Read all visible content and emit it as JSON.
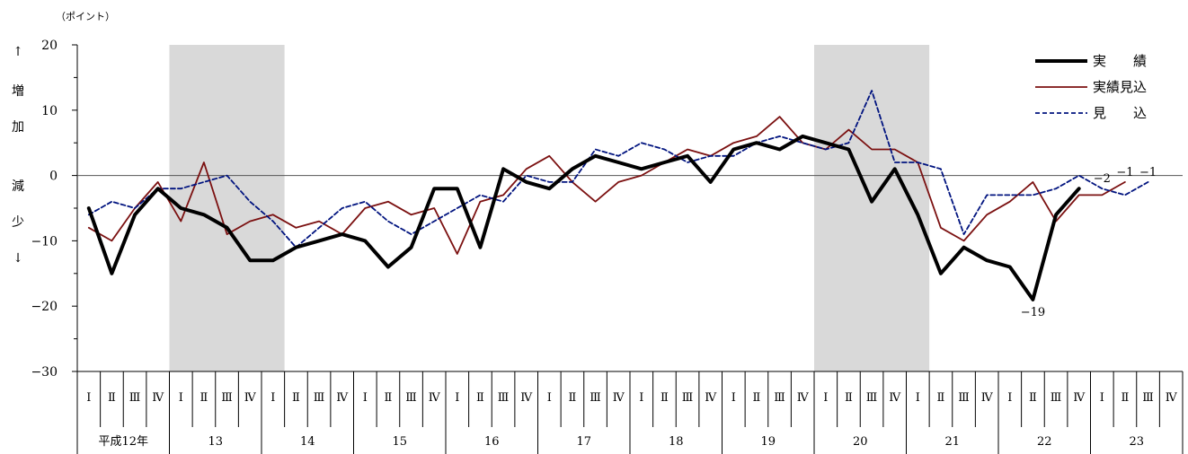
{
  "chart_data": {
    "type": "line",
    "unit_label": "（ポイント）",
    "y_side_label": [
      "↑",
      "増",
      "加",
      "減",
      "少",
      "↓"
    ],
    "ylim": [
      -30,
      20
    ],
    "y_ticks": [
      20,
      10,
      0,
      -10,
      -20,
      -30
    ],
    "y_tick_labels": [
      "20",
      "10",
      "0",
      "−10",
      "−20",
      "−30"
    ],
    "quarter_labels": [
      "Ⅰ",
      "Ⅱ",
      "Ⅲ",
      "Ⅳ"
    ],
    "years": [
      "平成12年",
      "13",
      "14",
      "15",
      "16",
      "17",
      "18",
      "19",
      "20",
      "21",
      "22",
      "23"
    ],
    "shaded_ranges": [
      [
        4,
        9
      ],
      [
        32,
        37
      ]
    ],
    "grid": false,
    "legend_position": "top-right",
    "series": [
      {
        "name": "実　　績",
        "color": "#000000",
        "style": "solid-thick",
        "values": [
          -5,
          -15,
          -6,
          -2,
          -5,
          -6,
          -8,
          -13,
          -13,
          -11,
          -10,
          -9,
          -10,
          -14,
          -11,
          -2,
          -2,
          -11,
          1,
          -1,
          -2,
          1,
          3,
          2,
          1,
          2,
          3,
          -1,
          4,
          5,
          4,
          6,
          5,
          4,
          -4,
          1,
          -6,
          -15,
          -11,
          -13,
          -14,
          -19,
          -6,
          -2,
          null,
          null,
          null,
          null
        ]
      },
      {
        "name": "実績見込",
        "color": "#7b1010",
        "style": "solid",
        "values": [
          -8,
          -10,
          -5,
          -1,
          -7,
          2,
          -9,
          -7,
          -6,
          -8,
          -7,
          -9,
          -5,
          -4,
          -6,
          -5,
          -12,
          -4,
          -3,
          1,
          3,
          -1,
          -4,
          -1,
          0,
          2,
          4,
          3,
          5,
          6,
          9,
          5,
          4,
          7,
          4,
          4,
          2,
          -8,
          -10,
          -6,
          -4,
          -1,
          -7,
          -3,
          -3,
          -1,
          null,
          null
        ]
      },
      {
        "name": "見　　込",
        "color": "#00137f",
        "style": "dashed",
        "values": [
          -6,
          -4,
          -5,
          -2,
          -2,
          -1,
          0,
          -4,
          -7,
          -11,
          -8,
          -5,
          -4,
          -7,
          -9,
          -7,
          -5,
          -3,
          -4,
          0,
          -1,
          -1,
          4,
          3,
          5,
          4,
          2,
          3,
          3,
          5,
          6,
          5,
          4,
          5,
          13,
          2,
          2,
          1,
          -9,
          -3,
          -3,
          -3,
          -2,
          0,
          -2,
          -3,
          -1,
          null
        ]
      }
    ],
    "annotations": [
      {
        "text": "−19",
        "quarter_index": 41,
        "value": -19,
        "placement": "below"
      },
      {
        "text": "−2",
        "quarter_index": 44,
        "value": -2,
        "placement": "above"
      },
      {
        "text": "−1",
        "quarter_index": 45,
        "value": -1,
        "placement": "above"
      },
      {
        "text": "−1",
        "quarter_index": 46,
        "value": -1,
        "placement": "above"
      }
    ]
  }
}
